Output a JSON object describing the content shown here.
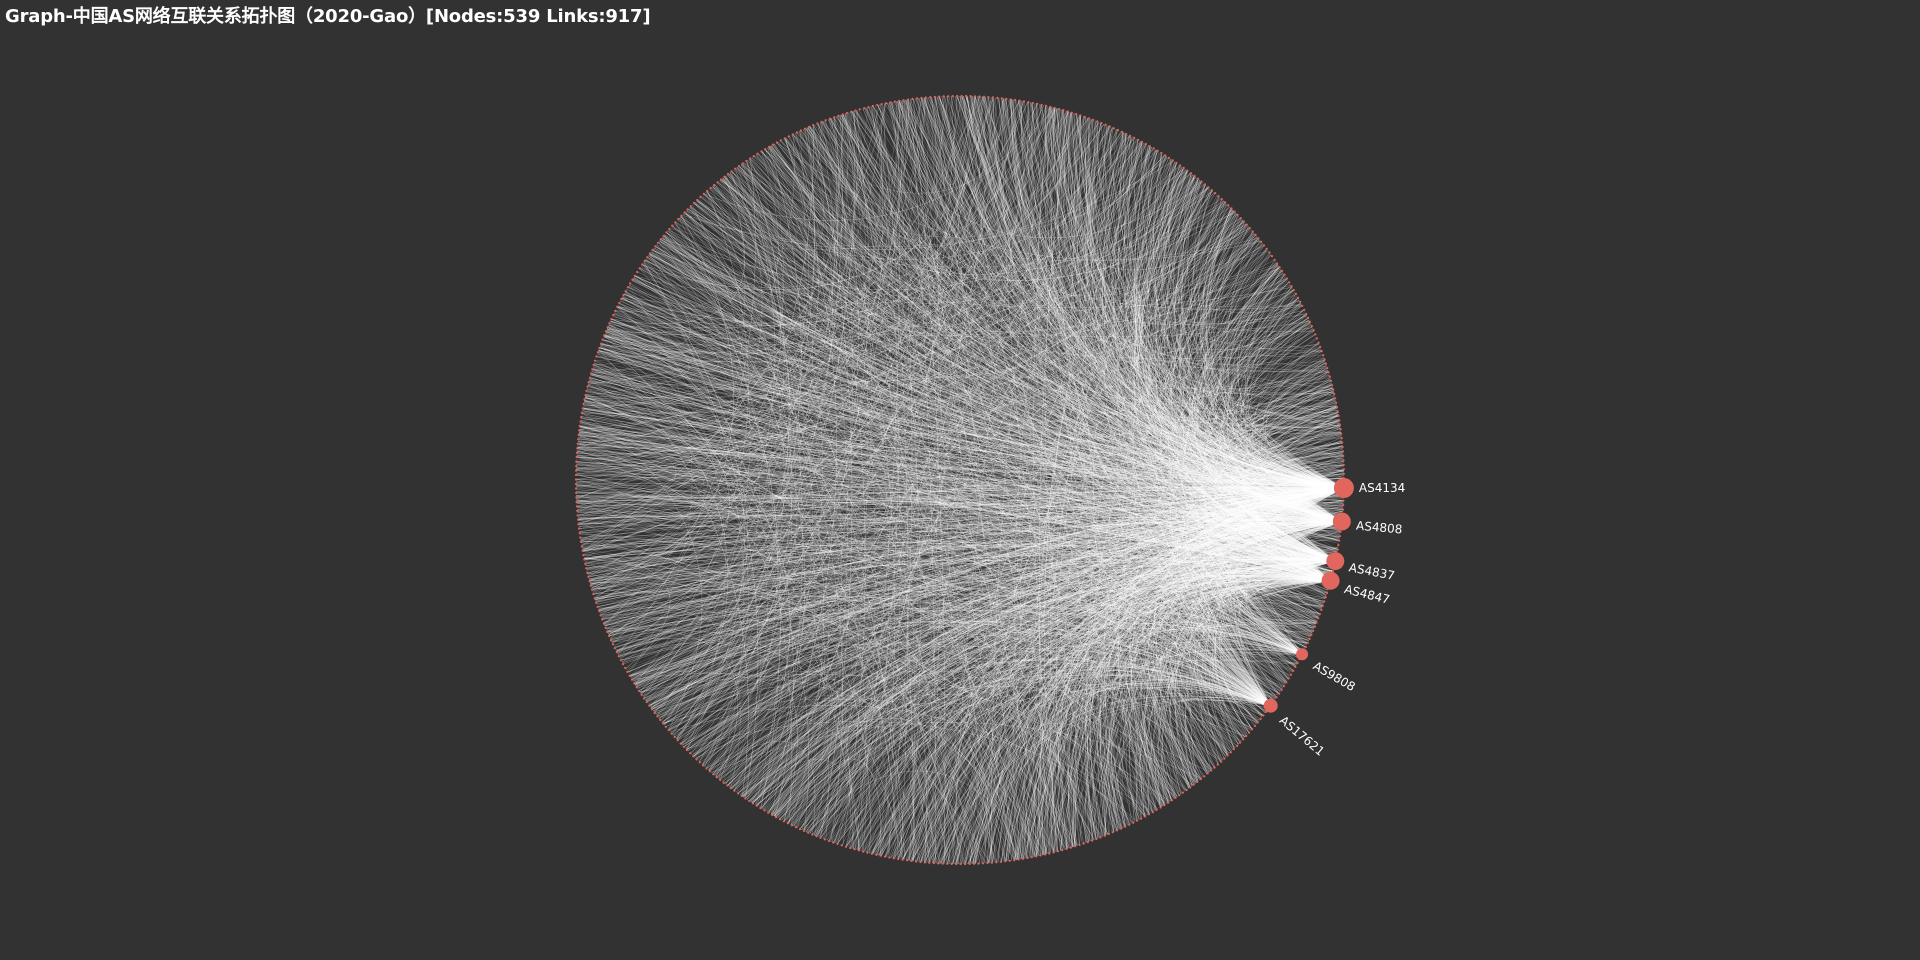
{
  "title": "Graph-中国AS网络互联关系拓扑图（2020-Gao）[Nodes:539 Links:917]",
  "colors": {
    "background": "#323232",
    "node": "#e0665e",
    "link": "#ffffff",
    "label": "#ffffff",
    "title": "#ffffff"
  },
  "graph": {
    "layout": "circular",
    "total_nodes": 539,
    "total_links": 917,
    "labeled_nodes": [
      {
        "name": "AS4134",
        "size": "large"
      },
      {
        "name": "AS4808",
        "size": "large"
      },
      {
        "name": "AS4837",
        "size": "large"
      },
      {
        "name": "AS4847",
        "size": "large"
      },
      {
        "name": "AS9808",
        "size": "medium"
      },
      {
        "name": "AS17621",
        "size": "medium"
      }
    ]
  }
}
